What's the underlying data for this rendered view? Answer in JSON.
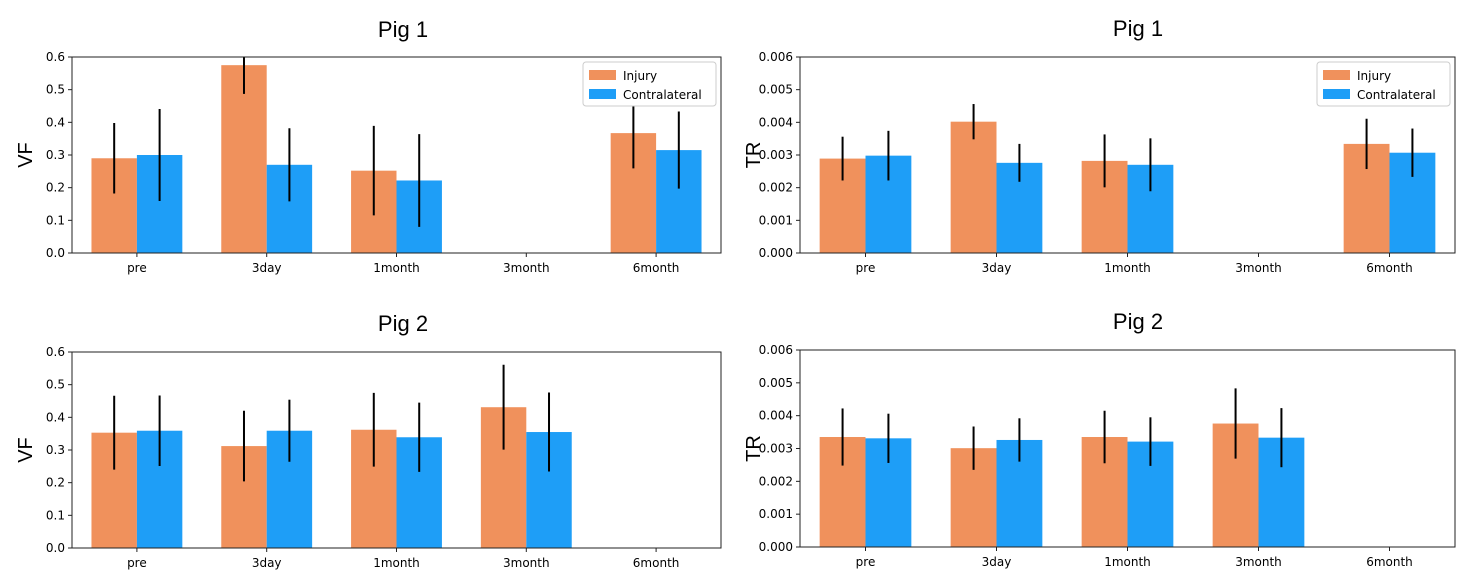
{
  "colors": {
    "injury": "#f0915c",
    "contralateral": "#1e9ef7",
    "error": "#000000"
  },
  "chart_data": [
    {
      "type": "bar",
      "title": "Pig 1",
      "xlabel": "",
      "ylabel": "VF",
      "categories": [
        "pre",
        "3day",
        "1month",
        "3month",
        "6month"
      ],
      "ylim": [
        0,
        0.6
      ],
      "yticks": [
        "0.0",
        "0.1",
        "0.2",
        "0.3",
        "0.4",
        "0.5",
        "0.6"
      ],
      "legend": [
        "Injury",
        "Contralateral"
      ],
      "legend_position": "top-right",
      "series": [
        {
          "name": "Injury",
          "values": [
            0.29,
            0.575,
            0.252,
            null,
            0.367
          ],
          "errors": [
            0.108,
            0.088,
            0.137,
            null,
            0.108
          ]
        },
        {
          "name": "Contralateral",
          "values": [
            0.3,
            0.27,
            0.222,
            null,
            0.315
          ],
          "errors": [
            0.141,
            0.112,
            0.142,
            null,
            0.118
          ]
        }
      ]
    },
    {
      "type": "bar",
      "title": "Pig 1",
      "xlabel": "",
      "ylabel": "TR",
      "categories": [
        "pre",
        "3day",
        "1month",
        "3month",
        "6month"
      ],
      "ylim": [
        0,
        0.006
      ],
      "yticks": [
        "0.000",
        "0.001",
        "0.002",
        "0.003",
        "0.004",
        "0.005",
        "0.006"
      ],
      "legend": [
        "Injury",
        "Contralateral"
      ],
      "legend_position": "top-right",
      "series": [
        {
          "name": "Injury",
          "values": [
            0.00289,
            0.00402,
            0.00282,
            null,
            0.00334
          ],
          "errors": [
            0.00067,
            0.00054,
            0.00081,
            null,
            0.00077
          ]
        },
        {
          "name": "Contralateral",
          "values": [
            0.00298,
            0.00276,
            0.0027,
            null,
            0.00307
          ],
          "errors": [
            0.00076,
            0.00058,
            0.00081,
            null,
            0.00074
          ]
        }
      ]
    },
    {
      "type": "bar",
      "title": "Pig 2",
      "xlabel": "",
      "ylabel": "VF",
      "categories": [
        "pre",
        "3day",
        "1month",
        "3month",
        "6month"
      ],
      "ylim": [
        0,
        0.6
      ],
      "yticks": [
        "0.0",
        "0.1",
        "0.2",
        "0.3",
        "0.4",
        "0.5",
        "0.6"
      ],
      "legend": [],
      "legend_position": "",
      "series": [
        {
          "name": "Injury",
          "values": [
            0.353,
            0.312,
            0.362,
            0.431,
            null
          ],
          "errors": [
            0.113,
            0.108,
            0.113,
            0.13,
            null
          ]
        },
        {
          "name": "Contralateral",
          "values": [
            0.359,
            0.359,
            0.339,
            0.355,
            null
          ],
          "errors": [
            0.108,
            0.095,
            0.106,
            0.121,
            null
          ]
        }
      ]
    },
    {
      "type": "bar",
      "title": "Pig 2",
      "xlabel": "",
      "ylabel": "TR",
      "categories": [
        "pre",
        "3day",
        "1month",
        "3month",
        "6month"
      ],
      "ylim": [
        0,
        0.006
      ],
      "yticks": [
        "0.000",
        "0.001",
        "0.002",
        "0.003",
        "0.004",
        "0.005",
        "0.006"
      ],
      "legend": [],
      "legend_position": "",
      "series": [
        {
          "name": "Injury",
          "values": [
            0.00335,
            0.00301,
            0.00335,
            0.00376,
            null
          ],
          "errors": [
            0.00087,
            0.00066,
            0.0008,
            0.00107,
            null
          ]
        },
        {
          "name": "Contralateral",
          "values": [
            0.00331,
            0.00326,
            0.00321,
            0.00333,
            null
          ],
          "errors": [
            0.00075,
            0.00066,
            0.00074,
            0.0009,
            null
          ]
        }
      ]
    }
  ]
}
